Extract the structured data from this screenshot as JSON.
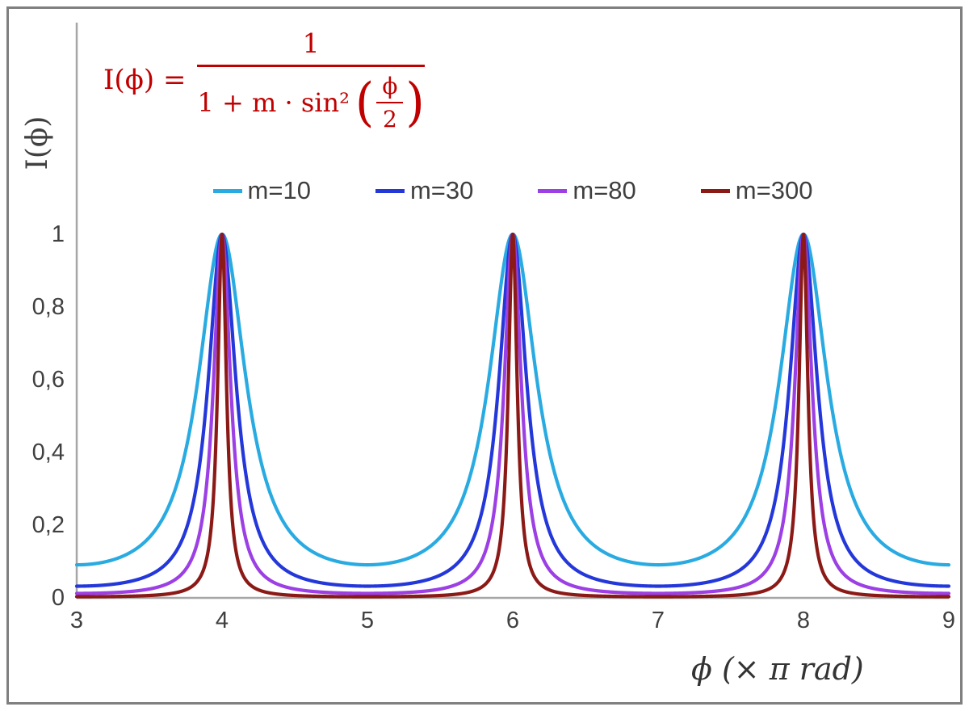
{
  "colors": {
    "frame": "#7F7F7F",
    "axis": "#A6A6A6",
    "formula": "#C00000",
    "tick_text": "#404040",
    "legend_text": "#3F3F3F",
    "background": "#FFFFFF"
  },
  "formula": {
    "lhs": "I(ϕ) =",
    "numerator": "1",
    "denominator_prefix": "1 + m · sin²",
    "open_paren": "(",
    "inner_numerator": "ϕ",
    "inner_denominator": "2",
    "close_paren": ")"
  },
  "labels": {
    "y_axis_title": "I(ϕ)",
    "x_axis_title": "ϕ  (× π rad)"
  },
  "chart_data": {
    "type": "line",
    "title": "",
    "formula": "I(ϕ) = 1 / (1 + m·sin²(ϕ/2))",
    "xlabel": "ϕ (× π rad)",
    "ylabel": "I(ϕ)",
    "x_unit": "π rad",
    "x_range": [
      3,
      9
    ],
    "y_range": [
      0,
      1
    ],
    "x_ticks": [
      3,
      4,
      5,
      6,
      7,
      8,
      9
    ],
    "x_tick_labels": [
      "3",
      "4",
      "5",
      "6",
      "7",
      "8",
      "9"
    ],
    "y_ticks": [
      0,
      0.2,
      0.4,
      0.6,
      0.8,
      1
    ],
    "y_tick_labels": [
      "0",
      "0,2",
      "0,4",
      "0,6",
      "0,8",
      "1"
    ],
    "peaks_at_x": [
      4,
      6,
      8
    ],
    "peak_value": 1,
    "grid": false,
    "legend_position": "top-center",
    "series": [
      {
        "name": "m=10",
        "m": 10,
        "color": "#29ABE2"
      },
      {
        "name": "m=30",
        "m": 30,
        "color": "#2438DA"
      },
      {
        "name": "m=80",
        "m": 80,
        "color": "#9C3FE4"
      },
      {
        "name": "m=300",
        "m": 300,
        "color": "#8B1A17"
      }
    ]
  }
}
